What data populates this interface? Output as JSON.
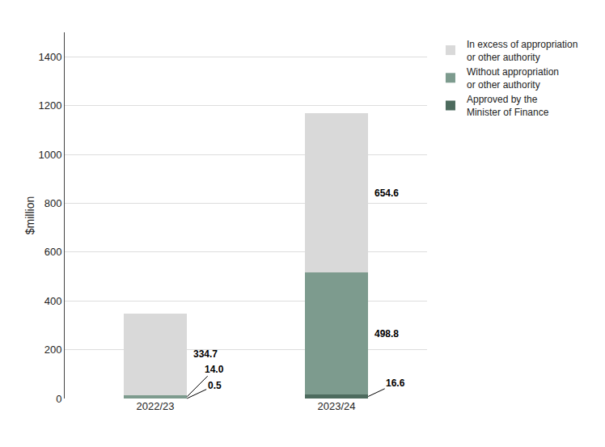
{
  "chart_data": {
    "type": "bar",
    "stacked": true,
    "categories": [
      "2022/23",
      "2023/24"
    ],
    "series": [
      {
        "name": "Approved by the\nMinister of Finance",
        "color": "#4d6b5e",
        "values": [
          0.5,
          16.6
        ],
        "value_labels": [
          "0.5",
          "16.6"
        ]
      },
      {
        "name": "Without appropriation\nor other authority",
        "color": "#7d9b8e",
        "values": [
          14.0,
          498.8
        ],
        "value_labels": [
          "14.0",
          "498.8"
        ]
      },
      {
        "name": "In excess of appropriation\nor other authority",
        "color": "#d9d9d9",
        "values": [
          334.7,
          654.6
        ],
        "value_labels": [
          "334.7",
          "654.6"
        ]
      }
    ],
    "ylabel": "$million",
    "ylim": [
      0,
      1500
    ],
    "yticks": [
      0,
      200,
      400,
      600,
      800,
      1000,
      1200,
      1400
    ],
    "grid": true,
    "legend": "right",
    "data_labels": true
  }
}
